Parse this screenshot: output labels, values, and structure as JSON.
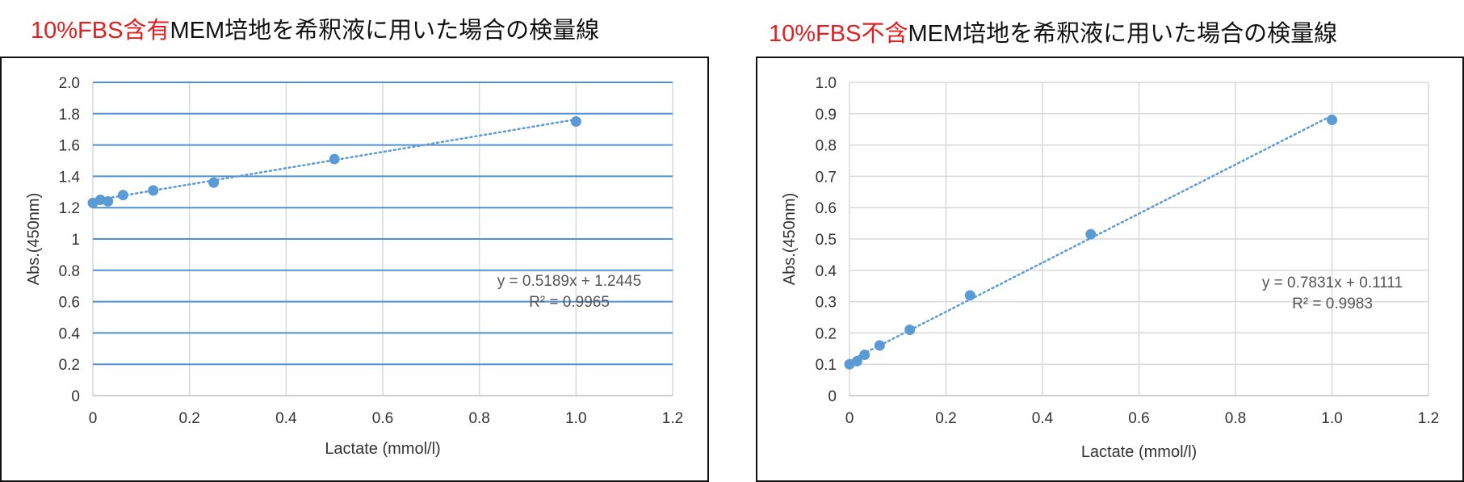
{
  "charts": [
    {
      "title_hl": "10%FBS含有",
      "title_rest": "MEM培地を希釈液に用いた場合の検量線",
      "equation": "y = 0.5189x + 1.2445",
      "r2": "R² = 0.9965"
    },
    {
      "title_hl": "10%FBS不含",
      "title_rest": "MEM培地を希釈液に用いた場合の検量線",
      "equation": "y = 0.7831x + 0.1111",
      "r2": "R² = 0.9983"
    }
  ],
  "colors": {
    "title_highlight": "#e02020",
    "marker": "#5b9bd5",
    "trendline": "#5b9bd5",
    "grid_left": "#4f91d1",
    "grid_right": "#d9d9d9"
  },
  "chart_data": [
    {
      "type": "scatter",
      "title": "10%FBS含有MEM培地を希釈液に用いた場合の検量線",
      "xlabel": "Lactate (mmol/l)",
      "ylabel": "Abs.(450nm)",
      "xlim": [
        0,
        1.2
      ],
      "ylim": [
        0,
        2.0
      ],
      "x_ticks": [
        "0",
        "0.2",
        "0.4",
        "0.6",
        "0.8",
        "1.0",
        "1.2"
      ],
      "y_ticks": [
        "0",
        "0.2",
        "0.4",
        "0.6",
        "0.8",
        "1",
        "1.2",
        "1.4",
        "1.6",
        "1.8",
        "2.0"
      ],
      "grid": "horizontal blue, vertical light gray",
      "series": [
        {
          "x": [
            0,
            0.0156,
            0.03125,
            0.0625,
            0.125,
            0.25,
            0.5,
            1.0
          ],
          "y": [
            1.23,
            1.25,
            1.24,
            1.28,
            1.31,
            1.36,
            1.51,
            1.75
          ]
        }
      ],
      "trendline": {
        "type": "linear",
        "slope": 0.5189,
        "intercept": 1.2445,
        "style": "dotted"
      },
      "annotation": [
        "y = 0.5189x + 1.2445",
        "R² = 0.9965"
      ]
    },
    {
      "type": "scatter",
      "title": "10%FBS不含MEM培地を希釈液に用いた場合の検量線",
      "xlabel": "Lactate (mmol/l)",
      "ylabel": "Abs.(450nm)",
      "xlim": [
        0,
        1.2
      ],
      "ylim": [
        0,
        1.0
      ],
      "x_ticks": [
        "0",
        "0.2",
        "0.4",
        "0.6",
        "0.8",
        "1.0",
        "1.2"
      ],
      "y_ticks": [
        "0",
        "0.1",
        "0.2",
        "0.3",
        "0.4",
        "0.5",
        "0.6",
        "0.7",
        "0.8",
        "0.9",
        "1.0"
      ],
      "grid": "light gray both directions",
      "series": [
        {
          "x": [
            0,
            0.0156,
            0.03125,
            0.0625,
            0.125,
            0.25,
            0.5,
            1.0
          ],
          "y": [
            0.1,
            0.11,
            0.13,
            0.16,
            0.21,
            0.32,
            0.515,
            0.88
          ]
        }
      ],
      "trendline": {
        "type": "linear",
        "slope": 0.7831,
        "intercept": 0.1111,
        "style": "dotted"
      },
      "annotation": [
        "y = 0.7831x + 0.1111",
        "R² = 0.9983"
      ]
    }
  ]
}
